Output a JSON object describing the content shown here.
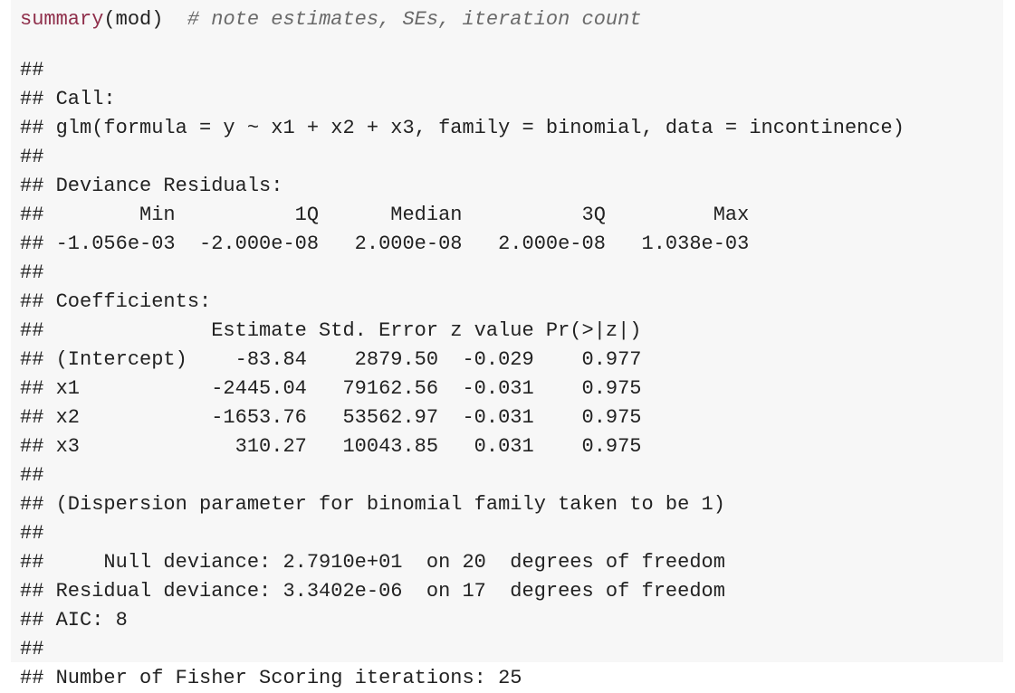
{
  "code": {
    "function": "summary",
    "args": "(mod)",
    "comment": "# note estimates, SEs, iteration count"
  },
  "output": [
    "##",
    "## Call:",
    "## glm(formula = y ~ x1 + x2 + x3, family = binomial, data = incontinence)",
    "##",
    "## Deviance Residuals:",
    "##        Min          1Q      Median          3Q         Max",
    "## -1.056e-03  -2.000e-08   2.000e-08   2.000e-08   1.038e-03",
    "##",
    "## Coefficients:",
    "##              Estimate Std. Error z value Pr(>|z|)",
    "## (Intercept)    -83.84    2879.50  -0.029    0.977",
    "## x1           -2445.04   79162.56  -0.031    0.975",
    "## x2           -1653.76   53562.97  -0.031    0.975",
    "## x3             310.27   10043.85   0.031    0.975",
    "##",
    "## (Dispersion parameter for binomial family taken to be 1)",
    "##",
    "##     Null deviance: 2.7910e+01  on 20  degrees of freedom",
    "## Residual deviance: 3.3402e-06  on 17  degrees of freedom",
    "## AIC: 8",
    "##",
    "## Number of Fisher Scoring iterations: 25"
  ]
}
